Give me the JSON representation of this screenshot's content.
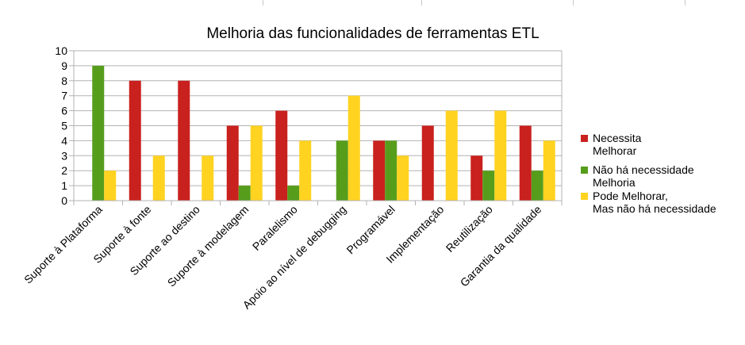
{
  "chart_data": {
    "type": "bar",
    "title": "Melhoria das funcionalidades de ferramentas ETL",
    "categories": [
      "Suporte à Plataforma",
      "Suporte à fonte",
      "Suporte ao destino",
      "Suporte à modelagem",
      "Paralelismo",
      "Apoio ao nível de debugging",
      "Programável",
      "Implementação",
      "Reutilização",
      "Garantia da qualidade"
    ],
    "series": [
      {
        "name": "Necessita Melhorar",
        "legend_lines": [
          "Necessita",
          "Melhorar"
        ],
        "color": "#c9211e",
        "values": [
          0,
          8,
          8,
          5,
          6,
          0,
          4,
          5,
          3,
          5
        ]
      },
      {
        "name": "Não há necessidade Melhoria",
        "legend_lines": [
          "Não há necessidade",
          "Melhoria"
        ],
        "color": "#579d1c",
        "values": [
          9,
          0,
          0,
          1,
          1,
          4,
          4,
          0,
          2,
          2
        ]
      },
      {
        "name": "Pode Melhorar, Mas não há necessidade",
        "legend_lines": [
          "Pode Melhorar,",
          "Mas não há necessidade"
        ],
        "color": "#ffd320",
        "values": [
          2,
          3,
          3,
          5,
          4,
          7,
          3,
          6,
          6,
          4
        ]
      }
    ],
    "ylim": [
      0,
      10
    ],
    "yticks": [
      "0",
      "1",
      "2",
      "3",
      "4",
      "5",
      "6",
      "7",
      "8",
      "9",
      "10"
    ],
    "xlabel": "",
    "ylabel": "",
    "grid": true,
    "legend_position": "right"
  }
}
